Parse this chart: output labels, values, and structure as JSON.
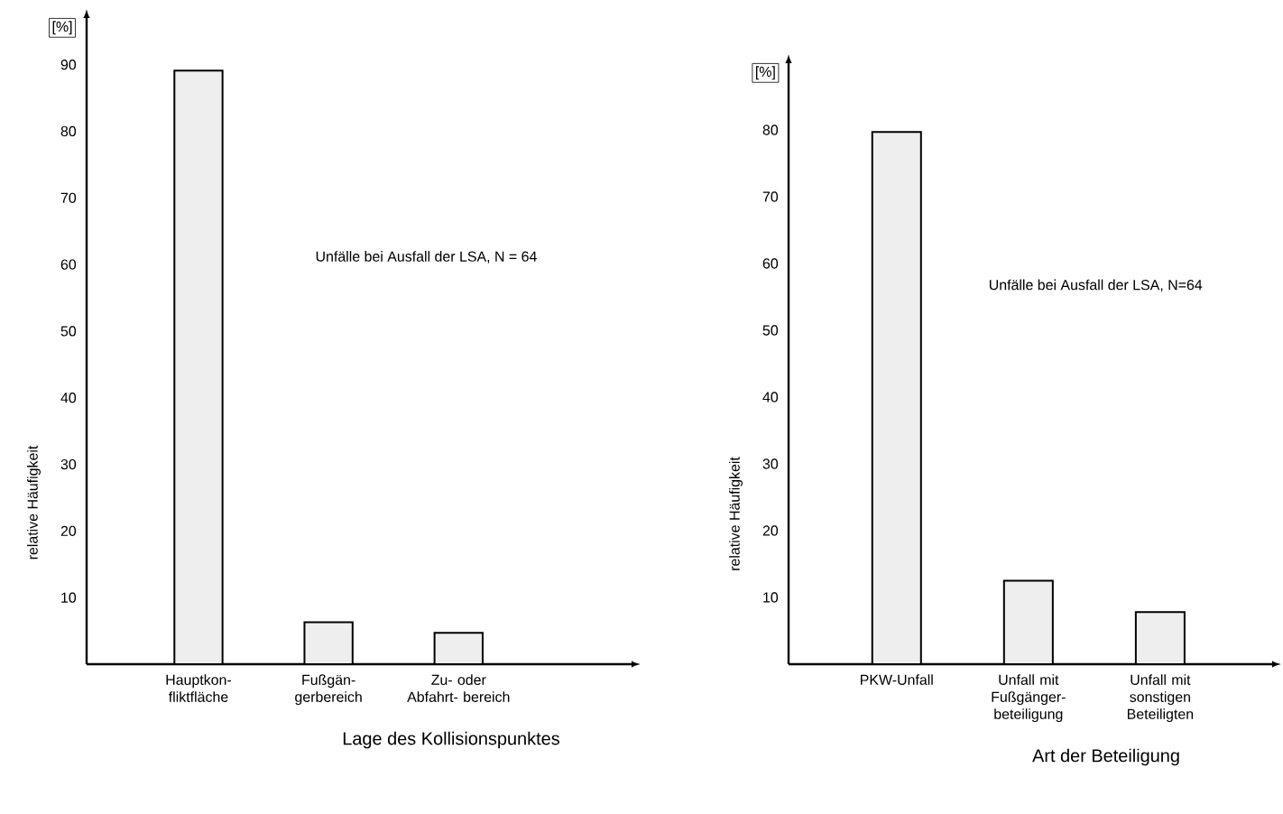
{
  "chart_data": [
    {
      "type": "bar",
      "xlabel": "Lage des Kollisionspunktes",
      "ylabel": "relative Häufigkeit",
      "categories": [
        "Hauptkon- fliktfläche",
        "Fußgän- gerbereich",
        "Zu- oder Abfahrt- bereich"
      ],
      "values": [
        89.1,
        6.3,
        4.7
      ],
      "color": "#eeeeee",
      "ylim": [
        0,
        97
      ],
      "yticks": [
        10,
        20,
        30,
        40,
        50,
        60,
        70,
        80,
        90
      ],
      "annotations": [
        "[%]",
        "Unfälle bei Ausfall der LSA, N = 64"
      ]
    },
    {
      "type": "bar",
      "xlabel": "Art der Beteiligung",
      "ylabel": "relative Häufigkeit",
      "categories": [
        "PKW-Unfall",
        "Unfall mit Fußgänger- beteiligung",
        "Unfall mit sonstigen Beteiligten"
      ],
      "values": [
        79.7,
        12.5,
        7.8
      ],
      "color": "#eeeeee",
      "ylim": [
        0,
        90
      ],
      "yticks": [
        10,
        20,
        30,
        40,
        50,
        60,
        70,
        80
      ],
      "annotations": [
        "[%]",
        "Unfälle bei Ausfall der LSA, N=64"
      ]
    }
  ]
}
